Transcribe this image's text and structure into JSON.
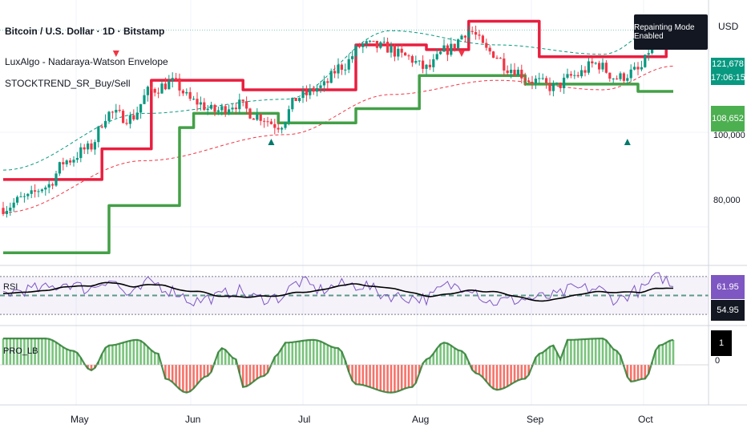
{
  "header": {
    "title": "Bitcoin / U.S. Dollar · 1D · Bitstamp",
    "indicator1": "LuxAlgo - Nadaraya-Watson Envelope",
    "indicator2": "STOCKTREND_SR_Buy/Sell",
    "badge": "Repainting Mode Enabled",
    "currency": "USD"
  },
  "price_axis": {
    "labels": [
      "100,000",
      "80,000"
    ],
    "tags": [
      {
        "text": "121,678",
        "color": "#089981"
      },
      {
        "text": "17:06:15",
        "color": "#089981"
      },
      {
        "text": "108,652",
        "color": "#4caf50"
      }
    ]
  },
  "time_axis": {
    "labels": [
      "May",
      "Jun",
      "Jul",
      "Aug",
      "Sep",
      "Oct"
    ]
  },
  "rsi_pane": {
    "label": "RSI",
    "tags": [
      {
        "text": "61.95",
        "color": "#7e57c2"
      },
      {
        "text": "54.95",
        "color": "#131722"
      }
    ]
  },
  "pro_pane": {
    "label": "PRO_LB",
    "tag": "1",
    "zero_label": "0"
  },
  "colors": {
    "up": "#089981",
    "down": "#f23645",
    "resistance": "#e91e3f",
    "support": "#43a047",
    "rsi": "#7e57c2",
    "rsi_ma": "#000000",
    "hist_up": "#4caf50",
    "hist_down": "#f44336"
  },
  "chart_data": {
    "type": "candlestick",
    "title": "Bitcoin / U.S. Dollar · 1D · Bitstamp",
    "x_range": [
      "2025-04-10",
      "2025-10-08"
    ],
    "ylim": [
      72000,
      128000
    ],
    "price_anchors": [
      [
        0,
        84000
      ],
      [
        6,
        86000
      ],
      [
        12,
        88500
      ],
      [
        18,
        94000
      ],
      [
        24,
        96500
      ],
      [
        30,
        104000
      ],
      [
        36,
        103000
      ],
      [
        42,
        109000
      ],
      [
        48,
        110500
      ],
      [
        54,
        106500
      ],
      [
        60,
        104500
      ],
      [
        66,
        106000
      ],
      [
        72,
        103500
      ],
      [
        78,
        101500
      ],
      [
        84,
        107500
      ],
      [
        90,
        109500
      ],
      [
        96,
        114000
      ],
      [
        102,
        118500
      ],
      [
        108,
        118000
      ],
      [
        114,
        116000
      ],
      [
        120,
        113500
      ],
      [
        126,
        117500
      ],
      [
        132,
        121500
      ],
      [
        138,
        117000
      ],
      [
        144,
        113500
      ],
      [
        150,
        111000
      ],
      [
        156,
        109500
      ],
      [
        162,
        112000
      ],
      [
        168,
        114500
      ],
      [
        174,
        111500
      ],
      [
        180,
        113000
      ],
      [
        186,
        121500
      ],
      [
        188,
        122500
      ],
      [
        190,
        121678
      ]
    ],
    "resistance_steps": [
      [
        0,
        90000
      ],
      [
        28,
        96500
      ],
      [
        42,
        111000
      ],
      [
        68,
        109000
      ],
      [
        100,
        118500
      ],
      [
        120,
        117500
      ],
      [
        132,
        123500
      ],
      [
        152,
        116000
      ],
      [
        188,
        124500
      ]
    ],
    "support_steps": [
      [
        0,
        74500
      ],
      [
        30,
        84500
      ],
      [
        50,
        101000
      ],
      [
        54,
        104000
      ],
      [
        78,
        102000
      ],
      [
        100,
        105000
      ],
      [
        118,
        112000
      ],
      [
        148,
        110200
      ],
      [
        180,
        108652
      ]
    ],
    "envelope_upper": [
      [
        0,
        92000
      ],
      [
        40,
        104000
      ],
      [
        80,
        107000
      ],
      [
        110,
        121500
      ],
      [
        140,
        118500
      ],
      [
        170,
        116500
      ],
      [
        190,
        124500
      ]
    ],
    "envelope_lower": [
      [
        0,
        83000
      ],
      [
        40,
        94000
      ],
      [
        80,
        99500
      ],
      [
        110,
        108000
      ],
      [
        140,
        111000
      ],
      [
        170,
        109000
      ],
      [
        190,
        114000
      ]
    ],
    "sell_markers": [
      32,
      130
    ],
    "buy_markers": [
      76,
      177
    ],
    "rsi": {
      "ylim": [
        20,
        80
      ],
      "overbought": 70,
      "middle": 50,
      "oversold": 30,
      "last": 61.95,
      "ma_last": 54.95
    },
    "pro_lb": {
      "ylim": [
        -1.3,
        1.3
      ],
      "last": 1,
      "anchors": [
        [
          0,
          0.95
        ],
        [
          12,
          0.95
        ],
        [
          20,
          0.5
        ],
        [
          25,
          -0.2
        ],
        [
          30,
          0.7
        ],
        [
          38,
          0.9
        ],
        [
          44,
          0.4
        ],
        [
          46,
          -0.5
        ],
        [
          52,
          -1.0
        ],
        [
          58,
          -0.4
        ],
        [
          62,
          0.6
        ],
        [
          66,
          0.2
        ],
        [
          68,
          -0.8
        ],
        [
          74,
          -0.4
        ],
        [
          78,
          0.4
        ],
        [
          80,
          0.8
        ],
        [
          88,
          0.9
        ],
        [
          95,
          0.6
        ],
        [
          100,
          -0.7
        ],
        [
          110,
          -1.0
        ],
        [
          116,
          -0.8
        ],
        [
          120,
          0.2
        ],
        [
          125,
          0.8
        ],
        [
          130,
          0.5
        ],
        [
          134,
          -0.3
        ],
        [
          140,
          -0.9
        ],
        [
          148,
          -0.5
        ],
        [
          152,
          0.4
        ],
        [
          156,
          0.7
        ],
        [
          158,
          0.2
        ],
        [
          160,
          0.9
        ],
        [
          170,
          0.95
        ],
        [
          174,
          0.5
        ],
        [
          178,
          -0.6
        ],
        [
          182,
          -0.5
        ],
        [
          186,
          0.7
        ],
        [
          190,
          0.9
        ]
      ]
    }
  }
}
